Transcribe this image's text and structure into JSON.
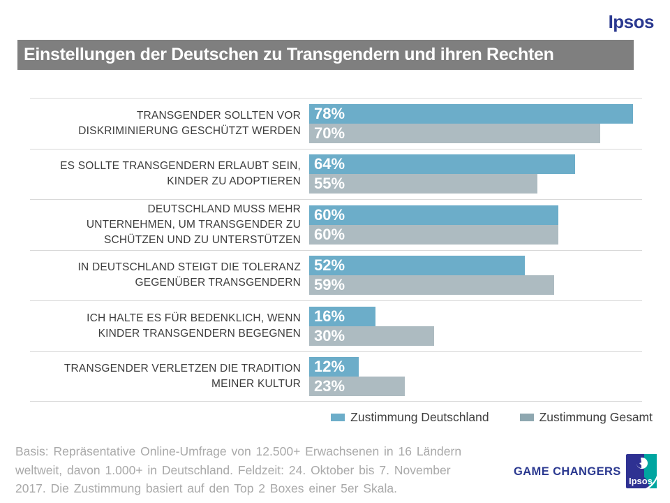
{
  "brand": {
    "wordmark": "Ipsos",
    "logo_text": "Ipsos",
    "brand_blue": "#2b3990",
    "logo_teal": "#00a5a0"
  },
  "header": {
    "title": "Einstellungen der Deutschen zu Transgendern und ihren Rechten",
    "bar_color": "#7f7f7f"
  },
  "chart_data": {
    "type": "bar",
    "orientation": "horizontal",
    "title": "Einstellungen der Deutschen zu Transgendern und ihren Rechten",
    "value_suffix": "%",
    "xlim": [
      0,
      100
    ],
    "grid": false,
    "legend_position": "bottom-right",
    "categories": [
      "TRANSGENDER SOLLTEN VOR\nDISKRIMINIERUNG GESCHÜTZT WERDEN",
      "ES SOLLTE TRANSGENDERN ERLAUBT SEIN,\nKINDER ZU ADOPTIEREN",
      "DEUTSCHLAND MUSS MEHR\nUNTERNEHMEN, UM TRANSGENDER ZU\nSCHÜTZEN UND ZU UNTERSTÜTZEN",
      "IN DEUTSCHLAND STEIGT DIE TOLERANZ\nGEGENÜBER TRANSGENDERN",
      "ICH HALTE ES FÜR BEDENKLICH, WENN\nKINDER TRANSGENDERN BEGEGNEN",
      "TRANSGENDER VERLETZEN DIE TRADITION\nMEINER KULTUR"
    ],
    "series": [
      {
        "name": "Zustimmung Deutschland",
        "color": "#6cadc9",
        "legend_color": "#6cadc9",
        "values": [
          78,
          64,
          60,
          52,
          16,
          12
        ]
      },
      {
        "name": "Zustimmung Gesamt",
        "color": "#adbbc1",
        "legend_color": "#8ea7b0",
        "values": [
          70,
          55,
          60,
          59,
          30,
          23
        ]
      }
    ]
  },
  "footer": {
    "lines": [
      "Basis: Repräsentative Online-Umfrage von 12.500+ Erwachsenen in 16 Ländern",
      "weltweit, davon 1.000+ in Deutschland. Feldzeit: 24. Oktober bis 7. November",
      "2017. Die Zustimmung basiert auf den Top 2 Boxes einer 5er Skala."
    ],
    "game_changers": "GAME CHANGERS"
  }
}
